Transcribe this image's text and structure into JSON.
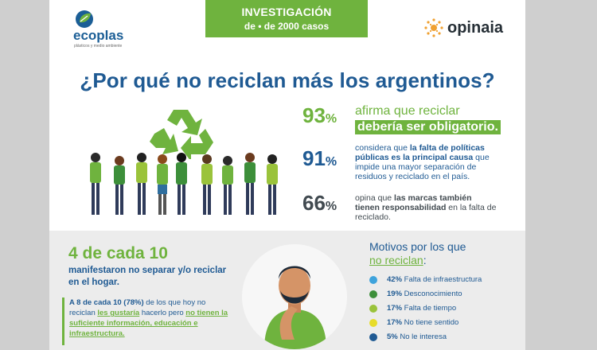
{
  "colors": {
    "green": "#6fb33e",
    "blue": "#1f5a93",
    "dark": "#414a50",
    "lightblue": "#3ea3dc",
    "darkgreen": "#3d8f3a",
    "lime": "#9ac33b",
    "yellow": "#e7dc2a",
    "navy": "#1f5a93"
  },
  "banner": {
    "line1": "INVESTIGACIÓN",
    "line2": "de • de 2000 casos"
  },
  "logo_left": {
    "name": "ecoplas",
    "tagline": "plásticos y medio ambiente"
  },
  "logo_right": {
    "name": "opinaia"
  },
  "title": "¿Por qué no reciclan más los argentinos?",
  "stats": [
    {
      "pct": "93",
      "pct_sign": "%",
      "line1": "afirma que reciclar",
      "line2": "debería ser obligatorio."
    },
    {
      "pct": "91",
      "pct_sign": "%",
      "prefix": "considera que ",
      "bold": "la falta de políticas públicas es la principal causa",
      "suffix": " que impide una mayor separación de residuos y reciclado en el país."
    },
    {
      "pct": "66",
      "pct_sign": "%",
      "prefix": "opina que ",
      "bold": "las marcas también tienen responsabilidad",
      "suffix": " en la falta de reciclado."
    }
  ],
  "lower": {
    "headline": "4 de cada 10",
    "subheadline": "manifestaron no separar y/o reciclar en el hogar.",
    "quote": {
      "prefix": "A 8 de cada 10 (78%)",
      "mid1": " de los que hoy no reciclan ",
      "ul1": "les gustaría",
      "mid2": " hacerlo pero ",
      "ul2": "no tienen la suficiente información, educación e infraestructura."
    },
    "motivos_title_1": "Motivos por los que",
    "motivos_title_2": "no reciclan",
    "motivos_title_colon": ":",
    "reasons": [
      {
        "pct": "42%",
        "label": "Falta de infraestructura",
        "color": "#3ea3dc"
      },
      {
        "pct": "19%",
        "label": "Desconocimiento",
        "color": "#3d8f3a"
      },
      {
        "pct": "17%",
        "label": "Falta de tiempo",
        "color": "#9ac33b"
      },
      {
        "pct": "17%",
        "label": "No tiene sentido",
        "color": "#e7dc2a"
      },
      {
        "pct": "5%",
        "label": "No le interesa",
        "color": "#1f5a93"
      }
    ]
  },
  "icons": {
    "recycle": "recycle-icon",
    "people": "people-illustration",
    "thinker": "thinking-man-illustration"
  }
}
